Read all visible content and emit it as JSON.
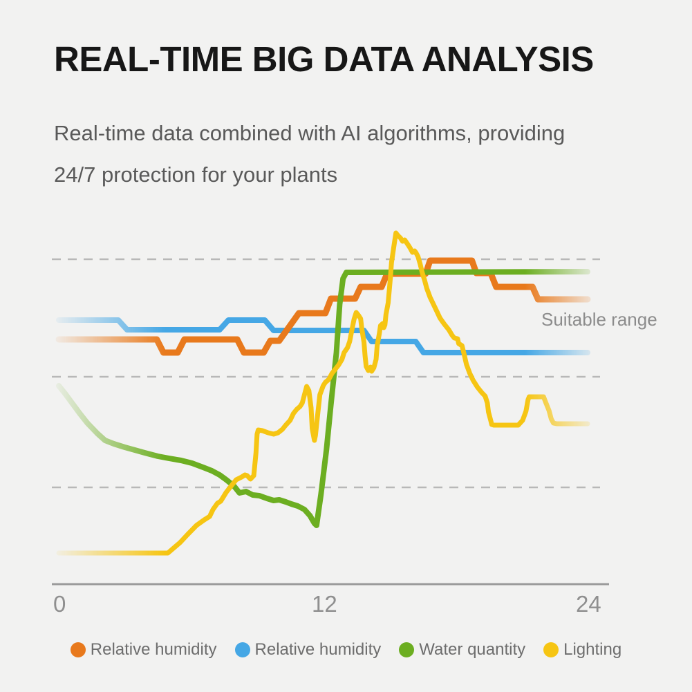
{
  "header": {
    "title": "REAL-TIME BIG DATA ANALYSIS",
    "subtitle_line1": "Real-time data combined with AI algorithms, providing",
    "subtitle_line2": "24/7 protection for your plants"
  },
  "chart_data": {
    "type": "line",
    "title": "",
    "xlabel": "",
    "ylabel": "",
    "x_range": [
      0,
      24
    ],
    "x_ticks": [
      "0",
      "12",
      "24"
    ],
    "y_axis_labeled": false,
    "y_scale_note": "relative 0-100 scale, no visible y labels",
    "grid": "three dashed horizontal gridlines",
    "gridlines_v": [
      94,
      60,
      28
    ],
    "annotation": "Suitable range",
    "legend_position": "bottom-center",
    "line_fade": "series fade in at left edge and fade out at right edge",
    "series": [
      {
        "name": "Relative humidity",
        "color": "#e8791c",
        "stroke_width": 9,
        "points": [
          [
            0,
            70.8
          ],
          [
            4.45,
            70.8
          ],
          [
            4.75,
            67
          ],
          [
            5.4,
            67
          ],
          [
            5.7,
            70.8
          ],
          [
            8.1,
            70.8
          ],
          [
            8.4,
            67
          ],
          [
            9.3,
            67
          ],
          [
            9.6,
            70.4
          ],
          [
            10,
            70.4
          ],
          [
            10.9,
            78.4
          ],
          [
            12.1,
            78.4
          ],
          [
            12.35,
            82.6
          ],
          [
            13.45,
            82.6
          ],
          [
            13.7,
            86
          ],
          [
            14.65,
            86
          ],
          [
            14.9,
            89.8
          ],
          [
            16.65,
            89.8
          ],
          [
            16.85,
            93.6
          ],
          [
            18.75,
            93.6
          ],
          [
            18.95,
            90
          ],
          [
            19.6,
            90
          ],
          [
            19.85,
            86
          ],
          [
            21.5,
            86
          ],
          [
            21.75,
            82.4
          ],
          [
            24,
            82.4
          ]
        ]
      },
      {
        "name": "Relative humidity",
        "color": "#45a7e5",
        "stroke_width": 8,
        "points": [
          [
            0,
            76.4
          ],
          [
            2.7,
            76.4
          ],
          [
            3.1,
            73.6
          ],
          [
            7.3,
            73.6
          ],
          [
            7.7,
            76.4
          ],
          [
            9.35,
            76.4
          ],
          [
            9.75,
            73.4
          ],
          [
            13.85,
            73.4
          ],
          [
            14.2,
            70.2
          ],
          [
            16.2,
            70.2
          ],
          [
            16.55,
            67
          ],
          [
            24,
            67
          ]
        ]
      },
      {
        "name": "Water quantity",
        "color": "#6cae21",
        "stroke_width": 8,
        "points": [
          [
            0,
            57.4
          ],
          [
            0.3,
            55
          ],
          [
            0.65,
            52
          ],
          [
            0.95,
            49.4
          ],
          [
            1.3,
            46.6
          ],
          [
            1.75,
            43.6
          ],
          [
            2.1,
            41.6
          ],
          [
            2.5,
            40.6
          ],
          [
            3,
            39.6
          ],
          [
            3.45,
            38.8
          ],
          [
            3.9,
            38
          ],
          [
            4.5,
            37
          ],
          [
            5,
            36.4
          ],
          [
            5.55,
            35.8
          ],
          [
            6.05,
            35
          ],
          [
            6.55,
            33.8
          ],
          [
            6.95,
            32.8
          ],
          [
            7.3,
            31.6
          ],
          [
            7.6,
            30.2
          ],
          [
            7.95,
            28.4
          ],
          [
            8.2,
            26.4
          ],
          [
            8.5,
            26.8
          ],
          [
            8.8,
            25.8
          ],
          [
            9.1,
            25.6
          ],
          [
            9.45,
            24.8
          ],
          [
            9.75,
            24.2
          ],
          [
            10,
            24.4
          ],
          [
            10.3,
            23.8
          ],
          [
            10.55,
            23.2
          ],
          [
            10.85,
            22.6
          ],
          [
            11.15,
            21.6
          ],
          [
            11.4,
            19.8
          ],
          [
            11.6,
            17.6
          ],
          [
            11.7,
            17
          ],
          [
            11.9,
            26
          ],
          [
            12.15,
            39
          ],
          [
            12.35,
            52
          ],
          [
            12.6,
            67
          ],
          [
            12.75,
            81
          ],
          [
            12.9,
            88.4
          ],
          [
            13.05,
            90.2
          ],
          [
            24,
            90.4
          ]
        ]
      },
      {
        "name": "Lighting",
        "color": "#f6c513",
        "stroke_width": 7,
        "points": [
          [
            0,
            9
          ],
          [
            4.95,
            9
          ],
          [
            5.5,
            12
          ],
          [
            5.85,
            14.4
          ],
          [
            6.25,
            17
          ],
          [
            6.6,
            18.6
          ],
          [
            6.85,
            19.6
          ],
          [
            7,
            21.6
          ],
          [
            7.2,
            23.4
          ],
          [
            7.35,
            24
          ],
          [
            7.6,
            26.6
          ],
          [
            7.85,
            28.6
          ],
          [
            8.05,
            30.2
          ],
          [
            8.3,
            31
          ],
          [
            8.45,
            31.6
          ],
          [
            8.55,
            31.4
          ],
          [
            8.7,
            30.4
          ],
          [
            8.85,
            31.4
          ],
          [
            8.95,
            38
          ],
          [
            9,
            43.4
          ],
          [
            9.05,
            44.6
          ],
          [
            9.25,
            44.4
          ],
          [
            9.5,
            43.8
          ],
          [
            9.75,
            43.4
          ],
          [
            9.95,
            43.8
          ],
          [
            10.15,
            44.8
          ],
          [
            10.3,
            46
          ],
          [
            10.5,
            47.4
          ],
          [
            10.65,
            49.4
          ],
          [
            10.8,
            50.6
          ],
          [
            10.95,
            51.4
          ],
          [
            11.05,
            52.4
          ],
          [
            11.15,
            54.8
          ],
          [
            11.25,
            57.2
          ],
          [
            11.35,
            56
          ],
          [
            11.45,
            51
          ],
          [
            11.5,
            45
          ],
          [
            11.6,
            41.6
          ],
          [
            11.65,
            43
          ],
          [
            11.75,
            49
          ],
          [
            11.85,
            54.8
          ],
          [
            12,
            57.4
          ],
          [
            12.1,
            58.4
          ],
          [
            12.25,
            59.2
          ],
          [
            12.4,
            61
          ],
          [
            12.6,
            62.6
          ],
          [
            12.7,
            63.4
          ],
          [
            12.85,
            65
          ],
          [
            12.95,
            67
          ],
          [
            13.1,
            68.4
          ],
          [
            13.2,
            70.2
          ],
          [
            13.3,
            73.4
          ],
          [
            13.4,
            76.6
          ],
          [
            13.5,
            78.6
          ],
          [
            13.6,
            77.8
          ],
          [
            13.7,
            76.8
          ],
          [
            13.75,
            74
          ],
          [
            13.85,
            70
          ],
          [
            13.9,
            66
          ],
          [
            13.95,
            63
          ],
          [
            14.05,
            61.8
          ],
          [
            14.15,
            62.8
          ],
          [
            14.2,
            61.6
          ],
          [
            14.3,
            62.6
          ],
          [
            14.4,
            65
          ],
          [
            14.45,
            69
          ],
          [
            14.55,
            72.6
          ],
          [
            14.6,
            74.8
          ],
          [
            14.7,
            75.4
          ],
          [
            14.75,
            74.2
          ],
          [
            14.8,
            75
          ],
          [
            14.85,
            78
          ],
          [
            14.95,
            81.4
          ],
          [
            15,
            85
          ],
          [
            15.05,
            88.6
          ],
          [
            15.1,
            93
          ],
          [
            15.2,
            97.4
          ],
          [
            15.3,
            101.6
          ],
          [
            15.4,
            100.8
          ],
          [
            15.5,
            100.2
          ],
          [
            15.6,
            99.2
          ],
          [
            15.7,
            99.6
          ],
          [
            15.85,
            98.2
          ],
          [
            15.95,
            97.2
          ],
          [
            16.05,
            96
          ],
          [
            16.15,
            96.4
          ],
          [
            16.2,
            96
          ],
          [
            16.3,
            94.8
          ],
          [
            16.4,
            92.6
          ],
          [
            16.5,
            90
          ],
          [
            16.6,
            88
          ],
          [
            16.7,
            85.6
          ],
          [
            16.85,
            83
          ],
          [
            17,
            81
          ],
          [
            17.15,
            79
          ],
          [
            17.3,
            77
          ],
          [
            17.5,
            75.2
          ],
          [
            17.7,
            73.6
          ],
          [
            17.85,
            72
          ],
          [
            17.95,
            71.2
          ],
          [
            18.1,
            71
          ],
          [
            18.15,
            69.6
          ],
          [
            18.3,
            69
          ],
          [
            18.4,
            66.4
          ],
          [
            18.5,
            63.6
          ],
          [
            18.65,
            61
          ],
          [
            18.8,
            59
          ],
          [
            19,
            57
          ],
          [
            19.2,
            55.4
          ],
          [
            19.35,
            54.4
          ],
          [
            19.45,
            52.4
          ],
          [
            19.5,
            49.8
          ],
          [
            19.6,
            47.4
          ],
          [
            19.65,
            46.2
          ],
          [
            19.75,
            46
          ],
          [
            20.85,
            46
          ],
          [
            21.05,
            47.4
          ],
          [
            21.2,
            50
          ],
          [
            21.3,
            53.4
          ],
          [
            21.35,
            54.2
          ],
          [
            22,
            54.2
          ],
          [
            22.1,
            52.6
          ],
          [
            22.25,
            50.2
          ],
          [
            22.35,
            47.8
          ],
          [
            22.45,
            46.6
          ],
          [
            22.6,
            46.4
          ],
          [
            24,
            46.4
          ]
        ]
      }
    ]
  }
}
